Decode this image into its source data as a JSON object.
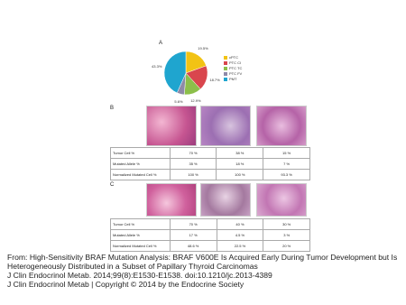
{
  "panel_labels": [
    "A",
    "B",
    "C"
  ],
  "chart_data": {
    "type": "pie",
    "categories": [
      "cPTC",
      "PTC CI",
      "PTC TC",
      "PTC FV",
      "PMT"
    ],
    "values": [
      19.5,
      18.7,
      12.9,
      5.6,
      43.3
    ],
    "value_labels": [
      "19.5%",
      "18.7%",
      "12.9%",
      "5.6%",
      "43.3%"
    ],
    "colors": [
      "#f2c314",
      "#d9464d",
      "#8cbf4a",
      "#8e8aa8",
      "#1fa5cf"
    ]
  },
  "tables": [
    {
      "rows": [
        [
          "Tumor Cell %",
          "70 %",
          "38 %",
          "15 %"
        ],
        [
          "Mutated Allele %",
          "35 %",
          "18 %",
          "7 %"
        ],
        [
          "Normalized Mutated Cell %",
          "100 %",
          "100 %",
          "93.3 %"
        ]
      ]
    },
    {
      "rows": [
        [
          "Tumor Cell %",
          "70 %",
          "40 %",
          "30 %"
        ],
        [
          "Mutated Allele %",
          "17 %",
          "4.5 %",
          "3 %"
        ],
        [
          "Normalized Mutated Cell %",
          "48.6 %",
          "22.5 %",
          "20 %"
        ]
      ]
    }
  ],
  "caption": {
    "source": "From: High-Sensitivity BRAF Mutation Analysis: BRAF V600E Is Acquired Early During Tumor Development but Is Heterogeneously Distributed in a Subset of Papillary Thyroid Carcinomas",
    "citation": "J Clin Endocrinol Metab. 2014;99(8):E1530-E1538. doi:10.1210/jc.2013-4389",
    "copyright": "J Clin Endocrinol Metab | Copyright © 2014 by the Endocrine Society"
  }
}
